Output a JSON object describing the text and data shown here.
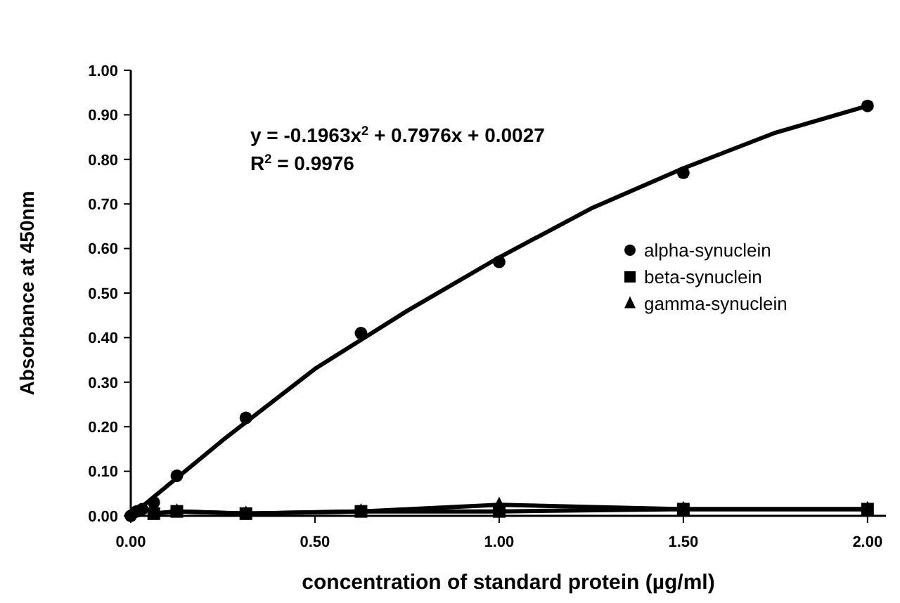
{
  "chart_data": {
    "type": "scatter",
    "xlabel": "concentration of standard protein (µg/ml)",
    "ylabel": "Absorbance at 450nm",
    "xlim": [
      0,
      2.05
    ],
    "ylim": [
      0,
      1
    ],
    "xticks": [
      {
        "value": 0,
        "label": "0.00"
      },
      {
        "value": 0.5,
        "label": "0.50"
      },
      {
        "value": 1,
        "label": "1.00"
      },
      {
        "value": 1.5,
        "label": "1.50"
      },
      {
        "value": 2,
        "label": "2.00"
      }
    ],
    "yticks": [
      {
        "value": 0,
        "label": "0.00"
      },
      {
        "value": 0.1,
        "label": "0.10"
      },
      {
        "value": 0.2,
        "label": "0.20"
      },
      {
        "value": 0.3,
        "label": "0.30"
      },
      {
        "value": 0.4,
        "label": "0.40"
      },
      {
        "value": 0.5,
        "label": "0.50"
      },
      {
        "value": 0.6,
        "label": "0.60"
      },
      {
        "value": 0.7,
        "label": "0.70"
      },
      {
        "value": 0.8,
        "label": "0.80"
      },
      {
        "value": 0.9,
        "label": "0.90"
      },
      {
        "value": 1,
        "label": "1.00"
      }
    ],
    "grid": false,
    "legend": "right",
    "annotations": [
      "y = -0.1963x$^{2}$ + 0.7976x + 0.0027",
      "R$^{2}$ = 0.9976"
    ],
    "series": [
      {
        "name": "alpha-synuclein",
        "marker": "circle",
        "color": "#000000",
        "x": [
          0,
          0.016,
          0.031,
          0.0625,
          0.125,
          0.3125,
          0.625,
          1.0,
          1.5,
          2.0
        ],
        "values": [
          0.0,
          0.01,
          0.015,
          0.03,
          0.09,
          0.22,
          0.41,
          0.57,
          0.77,
          0.92
        ]
      },
      {
        "type": "line",
        "marker": "none",
        "color": "#000000",
        "x": [
          0,
          0.25,
          0.5,
          0.75,
          1.0,
          1.25,
          1.5,
          1.75,
          2.0
        ],
        "values": [
          0.0,
          0.17,
          0.33,
          0.46,
          0.58,
          0.69,
          0.78,
          0.86,
          0.92
        ]
      },
      {
        "name": "beta-synuclein",
        "type": "line",
        "marker": "square",
        "color": "#000000",
        "x": [
          0.0625,
          0.125,
          0.3125,
          0.625,
          1.0,
          1.5,
          2.0
        ],
        "values": [
          0.005,
          0.01,
          0.005,
          0.01,
          0.01,
          0.015,
          0.015
        ]
      },
      {
        "name": "gamma-synuclein",
        "type": "line",
        "marker": "triangle",
        "color": "#000000",
        "x": [
          0.0625,
          0.125,
          0.3125,
          0.625,
          1.0,
          1.5,
          2.0
        ],
        "values": [
          0.005,
          0.01,
          0.005,
          0.01,
          0.025,
          0.015,
          0.015
        ]
      }
    ]
  }
}
